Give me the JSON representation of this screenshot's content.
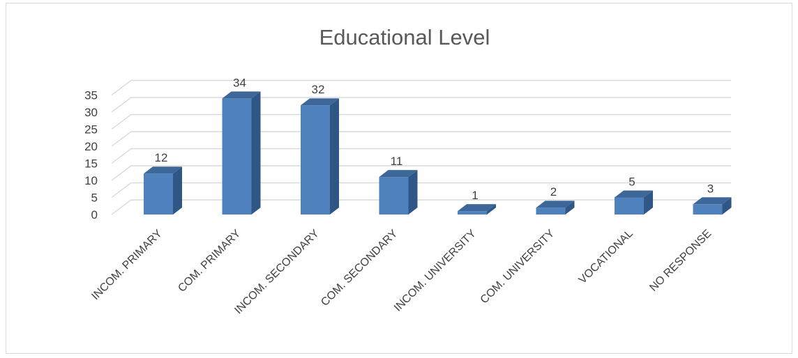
{
  "chart_data": {
    "type": "bar",
    "style": "3d-column",
    "title": "Educational Level",
    "xlabel": "",
    "ylabel": "",
    "categories": [
      "INCOM. PRIMARY",
      "COM. PRIMARY",
      "INCOM. SECONDARY",
      "COM. SECONDARY",
      "INCOM. UNIVERSITY",
      "COM. UNIVERSITY",
      "VOCATIONAL",
      "NO RESPONSE"
    ],
    "values": [
      12,
      34,
      32,
      11,
      1,
      2,
      5,
      3
    ],
    "ylim": [
      0,
      35
    ],
    "yticks": [
      0,
      5,
      10,
      15,
      20,
      25,
      30,
      35
    ],
    "grid": true,
    "legend": "none",
    "colors": {
      "bar_front": "#4f81bd",
      "bar_side": "#2f5685",
      "bar_top": "#3d6699",
      "grid": "#d9d9d9",
      "text": "#404040",
      "title": "#595959"
    }
  }
}
